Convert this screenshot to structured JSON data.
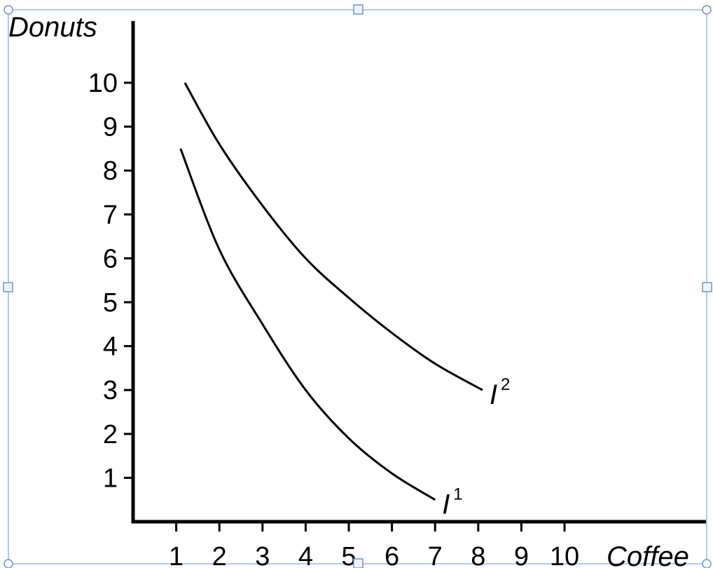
{
  "chart_data": {
    "type": "line",
    "xlabel": "Coffee",
    "ylabel": "Donuts",
    "xlim": [
      0,
      10
    ],
    "ylim": [
      0,
      10
    ],
    "x_ticks": [
      "1",
      "2",
      "3",
      "4",
      "5",
      "6",
      "7",
      "8",
      "9",
      "10"
    ],
    "y_ticks": [
      "1",
      "2",
      "3",
      "4",
      "5",
      "6",
      "7",
      "8",
      "9",
      "10"
    ],
    "grid": false,
    "series": [
      {
        "name": "I1",
        "label_base": "I",
        "label_sup": "1",
        "points": [
          [
            1.1,
            8.5
          ],
          [
            2,
            6.2
          ],
          [
            3,
            4.5
          ],
          [
            4,
            3.0
          ],
          [
            5,
            1.9
          ],
          [
            6,
            1.1
          ],
          [
            7,
            0.5
          ]
        ]
      },
      {
        "name": "I2",
        "label_base": "I",
        "label_sup": "2",
        "points": [
          [
            1.2,
            10.0
          ],
          [
            2,
            8.6
          ],
          [
            3,
            7.2
          ],
          [
            4,
            6.0
          ],
          [
            5,
            5.1
          ],
          [
            6,
            4.3
          ],
          [
            7,
            3.6
          ],
          [
            8.1,
            3.0
          ]
        ]
      }
    ]
  }
}
